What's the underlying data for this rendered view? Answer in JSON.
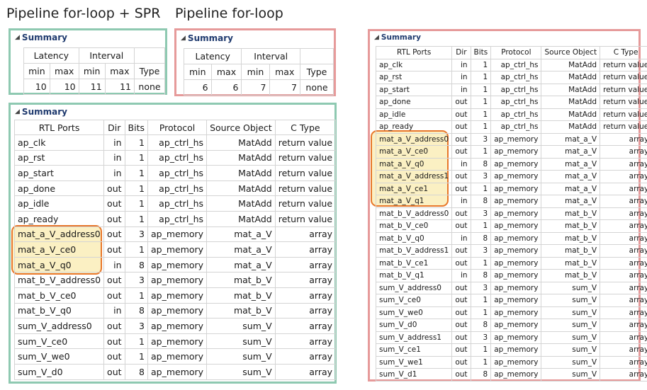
{
  "headings": {
    "spr": "Pipeline for-loop + SPR",
    "plain": "Pipeline for-loop"
  },
  "summary_label": "Summary",
  "latency_panels": [
    {
      "group_latency": "Latency",
      "group_interval": "Interval",
      "cols": [
        "min",
        "max",
        "min",
        "max",
        "Type"
      ],
      "values": [
        "10",
        "10",
        "11",
        "11",
        "none"
      ]
    },
    {
      "group_latency": "Latency",
      "group_interval": "Interval",
      "cols": [
        "min",
        "max",
        "min",
        "max",
        "Type"
      ],
      "values": [
        "6",
        "6",
        "7",
        "7",
        "none"
      ]
    }
  ],
  "port_columns": [
    "RTL Ports",
    "Dir",
    "Bits",
    "Protocol",
    "Source Object",
    "C Type"
  ],
  "ports_spr": [
    [
      "ap_clk",
      "in",
      "1",
      "ap_ctrl_hs",
      "MatAdd",
      "return value"
    ],
    [
      "ap_rst",
      "in",
      "1",
      "ap_ctrl_hs",
      "MatAdd",
      "return value"
    ],
    [
      "ap_start",
      "in",
      "1",
      "ap_ctrl_hs",
      "MatAdd",
      "return value"
    ],
    [
      "ap_done",
      "out",
      "1",
      "ap_ctrl_hs",
      "MatAdd",
      "return value"
    ],
    [
      "ap_idle",
      "out",
      "1",
      "ap_ctrl_hs",
      "MatAdd",
      "return value"
    ],
    [
      "ap_ready",
      "out",
      "1",
      "ap_ctrl_hs",
      "MatAdd",
      "return value"
    ],
    [
      "mat_a_V_address0",
      "out",
      "3",
      "ap_memory",
      "mat_a_V",
      "array"
    ],
    [
      "mat_a_V_ce0",
      "out",
      "1",
      "ap_memory",
      "mat_a_V",
      "array"
    ],
    [
      "mat_a_V_q0",
      "in",
      "8",
      "ap_memory",
      "mat_a_V",
      "array"
    ],
    [
      "mat_b_V_address0",
      "out",
      "3",
      "ap_memory",
      "mat_b_V",
      "array"
    ],
    [
      "mat_b_V_ce0",
      "out",
      "1",
      "ap_memory",
      "mat_b_V",
      "array"
    ],
    [
      "mat_b_V_q0",
      "in",
      "8",
      "ap_memory",
      "mat_b_V",
      "array"
    ],
    [
      "sum_V_address0",
      "out",
      "3",
      "ap_memory",
      "sum_V",
      "array"
    ],
    [
      "sum_V_ce0",
      "out",
      "1",
      "ap_memory",
      "sum_V",
      "array"
    ],
    [
      "sum_V_we0",
      "out",
      "1",
      "ap_memory",
      "sum_V",
      "array"
    ],
    [
      "sum_V_d0",
      "out",
      "8",
      "ap_memory",
      "sum_V",
      "array"
    ]
  ],
  "ports_plain": [
    [
      "ap_clk",
      "in",
      "1",
      "ap_ctrl_hs",
      "MatAdd",
      "return value"
    ],
    [
      "ap_rst",
      "in",
      "1",
      "ap_ctrl_hs",
      "MatAdd",
      "return value"
    ],
    [
      "ap_start",
      "in",
      "1",
      "ap_ctrl_hs",
      "MatAdd",
      "return value"
    ],
    [
      "ap_done",
      "out",
      "1",
      "ap_ctrl_hs",
      "MatAdd",
      "return value"
    ],
    [
      "ap_idle",
      "out",
      "1",
      "ap_ctrl_hs",
      "MatAdd",
      "return value"
    ],
    [
      "ap_ready",
      "out",
      "1",
      "ap_ctrl_hs",
      "MatAdd",
      "return value"
    ],
    [
      "mat_a_V_address0",
      "out",
      "3",
      "ap_memory",
      "mat_a_V",
      "array"
    ],
    [
      "mat_a_V_ce0",
      "out",
      "1",
      "ap_memory",
      "mat_a_V",
      "array"
    ],
    [
      "mat_a_V_q0",
      "in",
      "8",
      "ap_memory",
      "mat_a_V",
      "array"
    ],
    [
      "mat_a_V_address1",
      "out",
      "3",
      "ap_memory",
      "mat_a_V",
      "array"
    ],
    [
      "mat_a_V_ce1",
      "out",
      "1",
      "ap_memory",
      "mat_a_V",
      "array"
    ],
    [
      "mat_a_V_q1",
      "in",
      "8",
      "ap_memory",
      "mat_a_V",
      "array"
    ],
    [
      "mat_b_V_address0",
      "out",
      "3",
      "ap_memory",
      "mat_b_V",
      "array"
    ],
    [
      "mat_b_V_ce0",
      "out",
      "1",
      "ap_memory",
      "mat_b_V",
      "array"
    ],
    [
      "mat_b_V_q0",
      "in",
      "8",
      "ap_memory",
      "mat_b_V",
      "array"
    ],
    [
      "mat_b_V_address1",
      "out",
      "3",
      "ap_memory",
      "mat_b_V",
      "array"
    ],
    [
      "mat_b_V_ce1",
      "out",
      "1",
      "ap_memory",
      "mat_b_V",
      "array"
    ],
    [
      "mat_b_V_q1",
      "in",
      "8",
      "ap_memory",
      "mat_b_V",
      "array"
    ],
    [
      "sum_V_address0",
      "out",
      "3",
      "ap_memory",
      "sum_V",
      "array"
    ],
    [
      "sum_V_ce0",
      "out",
      "1",
      "ap_memory",
      "sum_V",
      "array"
    ],
    [
      "sum_V_we0",
      "out",
      "1",
      "ap_memory",
      "sum_V",
      "array"
    ],
    [
      "sum_V_d0",
      "out",
      "8",
      "ap_memory",
      "sum_V",
      "array"
    ],
    [
      "sum_V_address1",
      "out",
      "3",
      "ap_memory",
      "sum_V",
      "array"
    ],
    [
      "sum_V_ce1",
      "out",
      "1",
      "ap_memory",
      "sum_V",
      "array"
    ],
    [
      "sum_V_we1",
      "out",
      "1",
      "ap_memory",
      "sum_V",
      "array"
    ],
    [
      "sum_V_d1",
      "out",
      "8",
      "ap_memory",
      "sum_V",
      "array"
    ]
  ],
  "colors": {
    "green_border": "#8ec9b1",
    "red_border": "#e69a9a",
    "highlight_fill": "#fbf0c3",
    "highlight_border": "#e8772a",
    "summary_title": "#1f3a6e"
  }
}
